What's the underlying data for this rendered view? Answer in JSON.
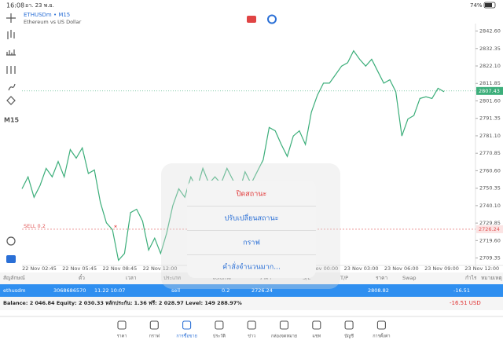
{
  "status_bar": {
    "time": "16:08",
    "date": "อา. 23 พ.ย.",
    "battery": "74%"
  },
  "chart": {
    "symbol": "ETHUSDm • M15",
    "description": "Ethereum vs US Dollar",
    "timeframe": "M15",
    "prices": [
      2750,
      2757,
      2745,
      2752,
      2762,
      2757,
      2766,
      2757,
      2773,
      2768,
      2774,
      2759,
      2761,
      2742,
      2730,
      2726,
      2708,
      2712,
      2736,
      2738,
      2731,
      2714,
      2721,
      2712,
      2724,
      2740,
      2750,
      2745,
      2757,
      2750,
      2762,
      2753,
      2757,
      2753,
      2762,
      2755,
      2748,
      2760,
      2753,
      2760,
      2767,
      2786,
      2784,
      2776,
      2769,
      2781,
      2784,
      2776,
      2795,
      2805,
      2812,
      2812,
      2817,
      2822,
      2824,
      2831,
      2826,
      2822,
      2826,
      2819,
      2812,
      2814,
      2807,
      2781,
      2791,
      2793,
      2803,
      2804,
      2803,
      2809,
      2807
    ],
    "color": "#3cae7a",
    "ylim": [
      2705,
      2847
    ],
    "yticks": [
      {
        "value": 2842.6,
        "label": "2842.60"
      },
      {
        "value": 2832.35,
        "label": "2832.35"
      },
      {
        "value": 2822.1,
        "label": "2822.10"
      },
      {
        "value": 2811.85,
        "label": "2811.85"
      },
      {
        "value": 2801.6,
        "label": "2801.60"
      },
      {
        "value": 2791.35,
        "label": "2791.35"
      },
      {
        "value": 2781.1,
        "label": "2781.10"
      },
      {
        "value": 2770.85,
        "label": "2770.85"
      },
      {
        "value": 2760.6,
        "label": "2760.60"
      },
      {
        "value": 2750.35,
        "label": "2750.35"
      },
      {
        "value": 2740.1,
        "label": "2740.10"
      },
      {
        "value": 2729.85,
        "label": "2729.85"
      },
      {
        "value": 2719.6,
        "label": "2719.60"
      },
      {
        "value": 2709.35,
        "label": "2709.35"
      }
    ],
    "xlabels": [
      "22 Nov 02:45",
      "22 Nov 05:45",
      "22 Nov 08:45",
      "22 Nov 12:00",
      null,
      null,
      null,
      "23 Nov 00:00",
      "23 Nov 03:00",
      "23 Nov 06:00",
      "23 Nov 09:00",
      "23 Nov 12:00"
    ],
    "current_price": {
      "value": 2807.43,
      "label": "2807.43"
    },
    "order_line": {
      "label": "SELL 0.2",
      "value": 2726.24,
      "price_label": "2726.24"
    }
  },
  "popup": {
    "items": [
      "ปิดสถานะ",
      "ปรับเปลี่ยนสถานะ",
      "กราฟ",
      "คำสั่งจำนวนมาก..."
    ]
  },
  "table": {
    "headers": [
      "สัญลักษณ์",
      "ตั๋ว",
      "เวลา",
      "ประเภท",
      "Volume",
      "ราคา",
      "S/L",
      "T/P",
      "ราคา",
      "Swap",
      "กำไร",
      "หมายเหตุ"
    ],
    "row": [
      "ethusdm",
      "3068686570",
      "11.22 10:07",
      "sell",
      "0.2",
      "2726.24",
      "2808.82",
      "-16.51"
    ],
    "balance": "Balance: 2 046.84 Equity: 2 030.33 หลักประกัน: 1.36 ฟรี: 2 028.97 Level: 149 288.97%",
    "total": "-16.51  USD"
  },
  "tabs": [
    "ราคา",
    "กราฟ",
    "การซื้อขาย",
    "ประวัติ",
    "ข่าว",
    "กล่องจดหมาย",
    "แชท",
    "บัญชี",
    "การตั้งค่า"
  ],
  "active_tab": 2
}
